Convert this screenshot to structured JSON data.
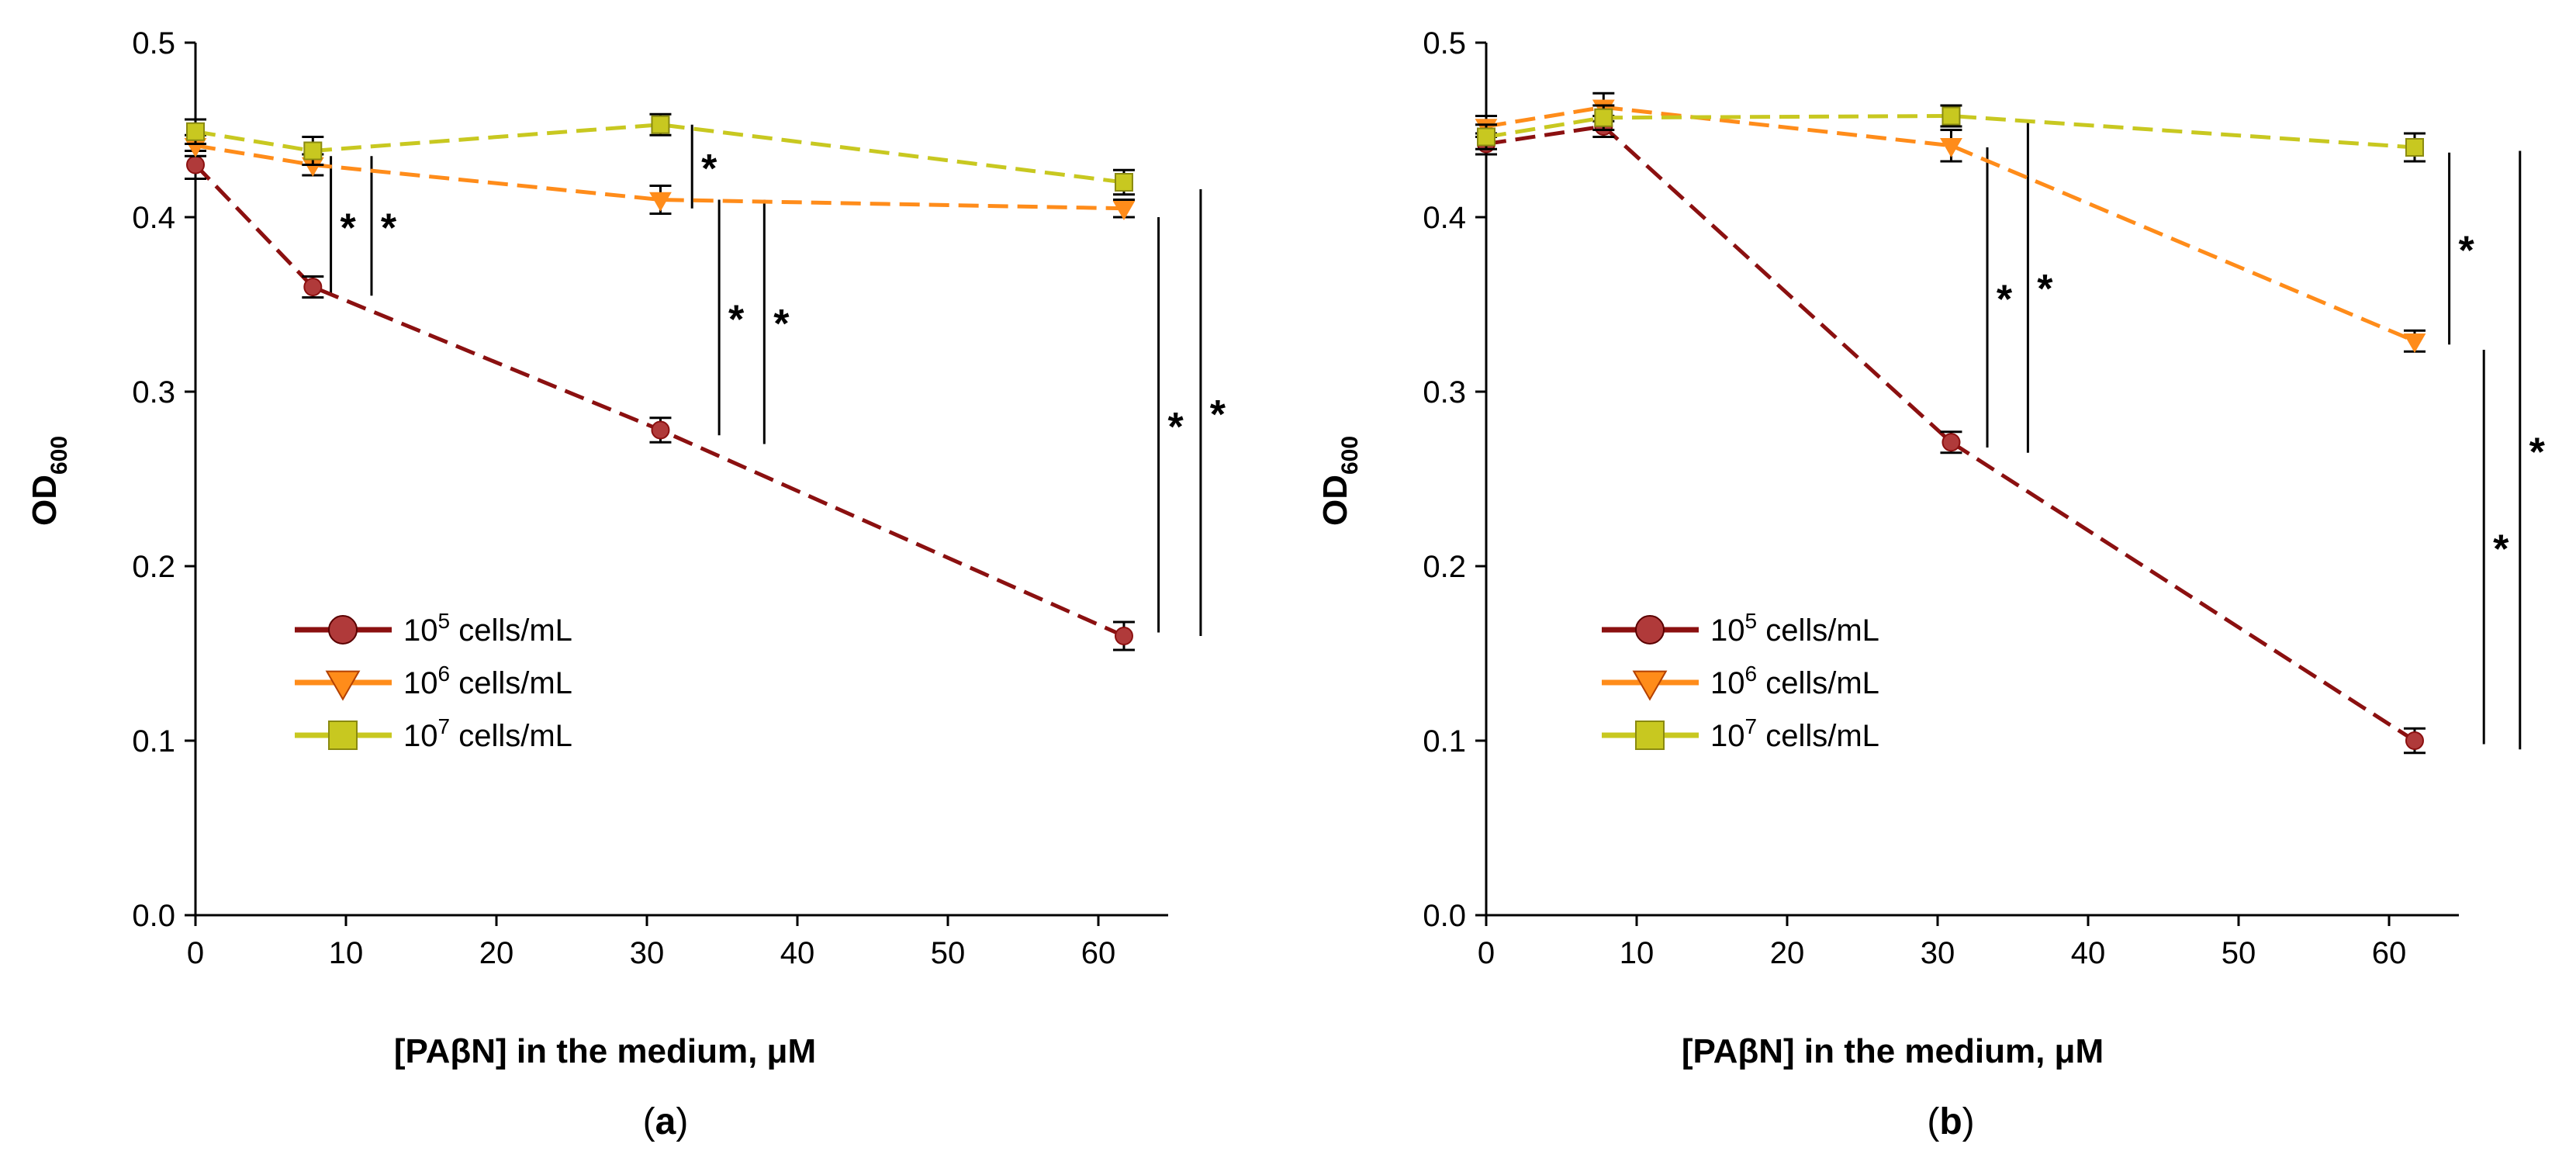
{
  "colors": {
    "series_1e5": "#8b1010",
    "series_1e5_marker": "#b03a3a",
    "series_1e6": "#ff8c1a",
    "series_1e7": "#c8c820",
    "axis": "#000000"
  },
  "chart_data": [
    {
      "panel": "a",
      "panel_label_letter": "a",
      "panel_label_open": "(",
      "panel_label_close": ")",
      "type": "line",
      "xlabel": "[PAβN] in the medium, μM",
      "ylabel_main": "OD",
      "ylabel_sub": "600",
      "xlim": [
        0,
        65
      ],
      "ylim": [
        0.0,
        0.5
      ],
      "xticks": [
        "0",
        "10",
        "20",
        "30",
        "40",
        "50",
        "60"
      ],
      "yticks": [
        "0.0",
        "0.1",
        "0.2",
        "0.3",
        "0.4",
        "0.5"
      ],
      "x": [
        0,
        7.8,
        30.9,
        61.7
      ],
      "series": [
        {
          "name_base": "10",
          "name_exp": "5",
          "name_rest": " cells/mL",
          "marker": "circle",
          "values": [
            0.43,
            0.36,
            0.278,
            0.16
          ],
          "errors": [
            0.008,
            0.006,
            0.007,
            0.008
          ]
        },
        {
          "name_base": "10",
          "name_exp": "6",
          "name_rest": " cells/mL",
          "marker": "triangle",
          "values": [
            0.441,
            0.43,
            0.41,
            0.405
          ],
          "errors": [
            0.006,
            0.006,
            0.008,
            0.005
          ]
        },
        {
          "name_base": "10",
          "name_exp": "7",
          "name_rest": " cells/mL",
          "marker": "square",
          "values": [
            0.449,
            0.438,
            0.453,
            0.42
          ],
          "errors": [
            0.007,
            0.008,
            0.006,
            0.007
          ]
        }
      ],
      "significance": [
        {
          "x": 9.0,
          "y_from": 0.355,
          "y_to": 0.435,
          "label": "*"
        },
        {
          "x": 11.7,
          "y_from": 0.355,
          "y_to": 0.435,
          "label": "*"
        },
        {
          "x": 33.0,
          "y_from": 0.405,
          "y_to": 0.453,
          "label": "*"
        },
        {
          "x": 34.8,
          "y_from": 0.275,
          "y_to": 0.41,
          "label": "*"
        },
        {
          "x": 37.8,
          "y_from": 0.27,
          "y_to": 0.41,
          "label": "*"
        },
        {
          "x": 64.0,
          "y_from": 0.162,
          "y_to": 0.4,
          "label": "*"
        },
        {
          "x": 66.8,
          "y_from": 0.16,
          "y_to": 0.416,
          "label": "*"
        }
      ]
    },
    {
      "panel": "b",
      "panel_label_letter": "b",
      "panel_label_open": "(",
      "panel_label_close": ")",
      "type": "line",
      "xlabel": "[PAβN] in the medium, μM",
      "ylabel_main": "OD",
      "ylabel_sub": "600",
      "xlim": [
        0,
        65
      ],
      "ylim": [
        0.0,
        0.5
      ],
      "xticks": [
        "0",
        "10",
        "20",
        "30",
        "40",
        "50",
        "60"
      ],
      "yticks": [
        "0.0",
        "0.1",
        "0.2",
        "0.3",
        "0.4",
        "0.5"
      ],
      "x": [
        0,
        7.8,
        30.9,
        61.7
      ],
      "series": [
        {
          "name_base": "10",
          "name_exp": "5",
          "name_rest": " cells/mL",
          "marker": "circle",
          "values": [
            0.442,
            0.452,
            0.271,
            0.1
          ],
          "errors": [
            0.006,
            0.006,
            0.006,
            0.007
          ]
        },
        {
          "name_base": "10",
          "name_exp": "6",
          "name_rest": " cells/mL",
          "marker": "triangle",
          "values": [
            0.452,
            0.463,
            0.441,
            0.329
          ],
          "errors": [
            0.006,
            0.008,
            0.009,
            0.006
          ]
        },
        {
          "name_base": "10",
          "name_exp": "7",
          "name_rest": " cells/mL",
          "marker": "square",
          "values": [
            0.446,
            0.457,
            0.458,
            0.44
          ],
          "errors": [
            0.007,
            0.007,
            0.006,
            0.008
          ]
        }
      ],
      "significance": [
        {
          "x": 33.3,
          "y_from": 0.268,
          "y_to": 0.44,
          "label": "*"
        },
        {
          "x": 36.0,
          "y_from": 0.265,
          "y_to": 0.455,
          "label": "*"
        },
        {
          "x": 64.0,
          "y_from": 0.327,
          "y_to": 0.437,
          "label": "*"
        },
        {
          "x": 66.3,
          "y_from": 0.098,
          "y_to": 0.324,
          "label": "*"
        },
        {
          "x": 68.7,
          "y_from": 0.095,
          "y_to": 0.438,
          "label": "*"
        }
      ]
    }
  ]
}
